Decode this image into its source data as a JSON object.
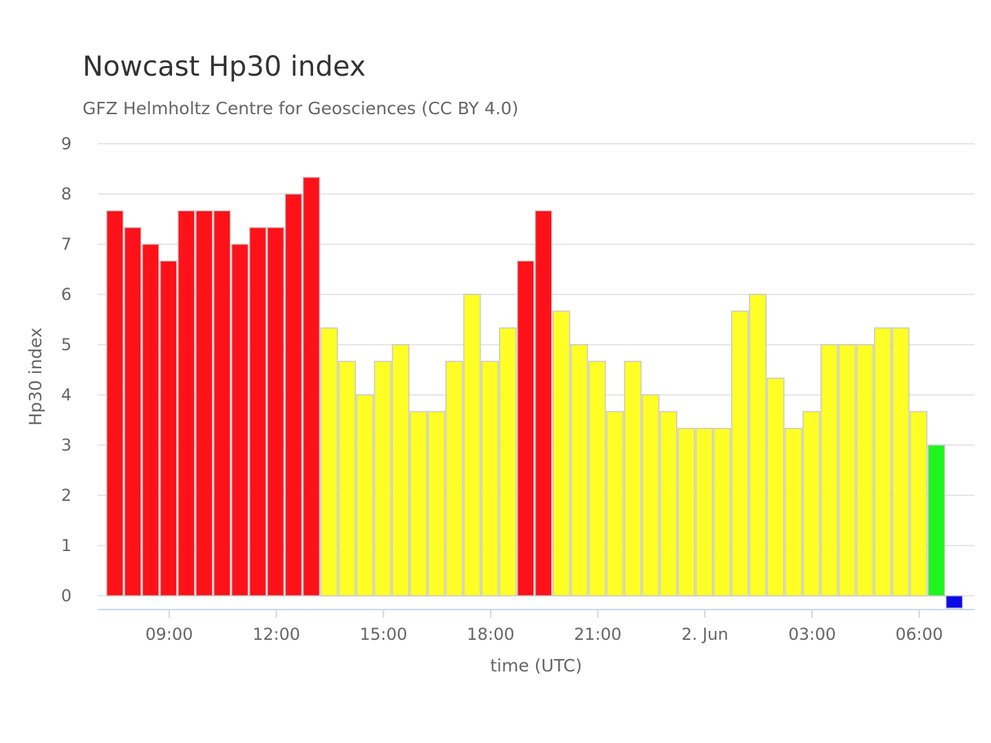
{
  "chart_data": {
    "type": "bar",
    "title": "Nowcast Hp30 index",
    "subtitle": "GFZ Helmholtz Centre for Geosciences (CC BY 4.0)",
    "xlabel": "time (UTC)",
    "ylabel": "Hp30 index",
    "ylim": [
      0,
      9
    ],
    "yticks": [
      "0",
      "1",
      "2",
      "3",
      "4",
      "5",
      "6",
      "7",
      "8",
      "9"
    ],
    "xticks": [
      {
        "label": "09:00",
        "index": 3.5
      },
      {
        "label": "12:00",
        "index": 9.5
      },
      {
        "label": "15:00",
        "index": 15.5
      },
      {
        "label": "18:00",
        "index": 21.5
      },
      {
        "label": "21:00",
        "index": 27.5
      },
      {
        "label": "2. Jun",
        "index": 33.5
      },
      {
        "label": "03:00",
        "index": 39.5
      },
      {
        "label": "06:00",
        "index": 45.5
      }
    ],
    "grid": true,
    "legend": "none",
    "bar_interval": "30 min",
    "first_bar": "07:00",
    "colors": {
      "strong": "#ff1119",
      "moderate": "#ffff26",
      "weak": "#1ef51e",
      "quiet": "#0a0ae6"
    },
    "values": [
      7.667,
      7.333,
      7.0,
      6.667,
      7.667,
      7.667,
      7.667,
      7.0,
      7.333,
      7.333,
      8.0,
      8.333,
      5.333,
      4.667,
      4.0,
      4.667,
      5.0,
      3.667,
      3.667,
      4.667,
      6.0,
      4.667,
      5.333,
      6.667,
      7.667,
      5.667,
      5.0,
      4.667,
      3.667,
      4.667,
      4.0,
      3.667,
      3.333,
      3.333,
      3.333,
      5.667,
      6.0,
      4.333,
      3.333,
      3.667,
      5.0,
      5.0,
      5.0,
      5.333,
      5.333,
      3.667,
      3.0,
      0.0
    ],
    "bar_colors": [
      "strong",
      "strong",
      "strong",
      "strong",
      "strong",
      "strong",
      "strong",
      "strong",
      "strong",
      "strong",
      "strong",
      "strong",
      "moderate",
      "moderate",
      "moderate",
      "moderate",
      "moderate",
      "moderate",
      "moderate",
      "moderate",
      "moderate",
      "moderate",
      "moderate",
      "strong",
      "strong",
      "moderate",
      "moderate",
      "moderate",
      "moderate",
      "moderate",
      "moderate",
      "moderate",
      "moderate",
      "moderate",
      "moderate",
      "moderate",
      "moderate",
      "moderate",
      "moderate",
      "moderate",
      "moderate",
      "moderate",
      "moderate",
      "moderate",
      "moderate",
      "moderate",
      "weak",
      "quiet"
    ]
  }
}
